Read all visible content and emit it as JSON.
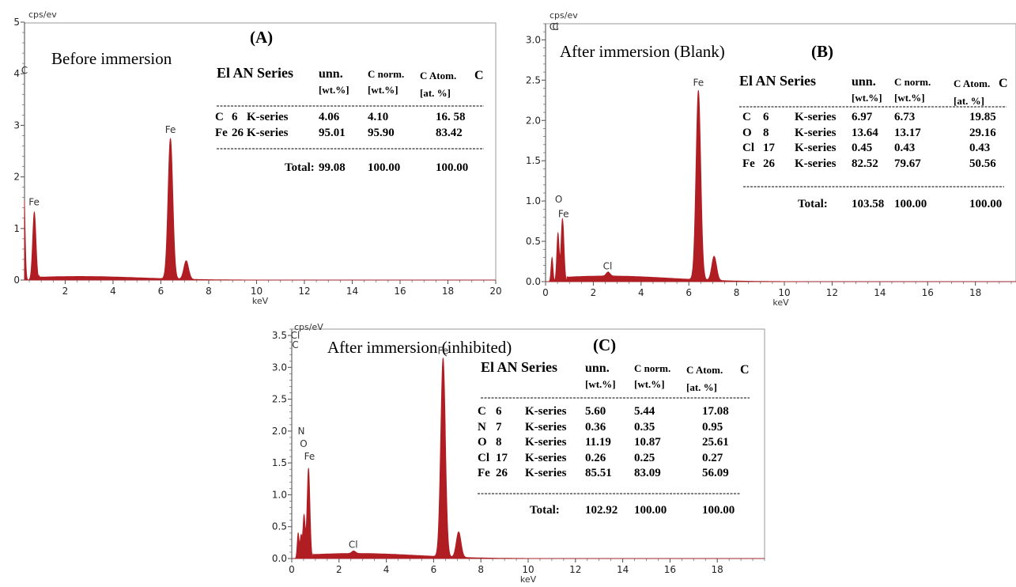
{
  "chart_data": [
    {
      "id": "A",
      "type": "area",
      "panel_label": "(A)",
      "title": "Before immersion",
      "y_unit": "cps/ev",
      "xlabel": "keV",
      "xlim": [
        0.3,
        20
      ],
      "ylim": [
        0,
        5
      ],
      "x_ticks": [
        2,
        4,
        6,
        8,
        10,
        12,
        14,
        16,
        18,
        "20"
      ],
      "y_ticks": [
        0,
        1,
        2,
        3,
        4,
        5
      ],
      "color": "#b01e24",
      "peaks": [
        {
          "x": 0.27,
          "y": 1.85,
          "w": 0.05
        },
        {
          "x": 0.71,
          "y": 1.32,
          "w": 0.07
        },
        {
          "x": 6.4,
          "y": 2.72,
          "w": 0.1
        },
        {
          "x": 7.06,
          "y": 0.36,
          "w": 0.1
        }
      ],
      "background": {
        "amp": 0.07,
        "center": 2.6,
        "width": 2.6,
        "tail_end": 12
      },
      "peak_labels": [
        {
          "text": "C",
          "x": 0.3,
          "y": 4.0
        },
        {
          "text": "Fe",
          "x": 0.7,
          "y": 1.45
        },
        {
          "text": "Fe",
          "x": 6.4,
          "y": 2.85
        }
      ],
      "table": {
        "headers": {
          "el_an_series": "El AN Series",
          "unn": "unn.",
          "c_norm": "C norm.",
          "c_atom": "C Atom.",
          "c_trail": "C",
          "wt1": "[wt.%]",
          "wt2": "[wt.%]",
          "at": "[at. %]"
        },
        "rows": [
          {
            "el": "C",
            "an": "6",
            "series": "K-series",
            "unn": "4.06",
            "norm": "4.10",
            "atom": "16. 58"
          },
          {
            "el": "Fe",
            "an": "26",
            "series": "K-series",
            "unn": "95.01",
            "norm": "95.90",
            "atom": "83.42"
          }
        ],
        "total": {
          "label": "Total:",
          "unn": "99.08",
          "norm": "100.00",
          "atom": "100.00"
        }
      }
    },
    {
      "id": "B",
      "type": "area",
      "panel_label": "(B)",
      "title": "After immersion (Blank)",
      "y_unit": "cps/ev",
      "xlabel": "keV",
      "xlim": [
        0,
        19.7
      ],
      "ylim": [
        0,
        3.2
      ],
      "x_ticks": [
        0,
        2,
        4,
        6,
        8,
        10,
        12,
        14,
        16,
        18
      ],
      "y_ticks": [
        "0.0",
        "0.5",
        "1.0",
        "1.5",
        "2.0",
        "2.5",
        "3.0"
      ],
      "color": "#b01e24",
      "peaks": [
        {
          "x": 0.27,
          "y": 0.3,
          "w": 0.04
        },
        {
          "x": 0.52,
          "y": 0.6,
          "w": 0.05
        },
        {
          "x": 0.71,
          "y": 0.78,
          "w": 0.06
        },
        {
          "x": 2.62,
          "y": 0.05,
          "w": 0.08
        },
        {
          "x": 6.4,
          "y": 2.35,
          "w": 0.1
        },
        {
          "x": 7.06,
          "y": 0.3,
          "w": 0.1
        }
      ],
      "background": {
        "amp": 0.07,
        "center": 2.6,
        "width": 2.6,
        "tail_end": 12
      },
      "peak_labels": [
        {
          "text": "Cl",
          "x": 0.35,
          "y": 3.12
        },
        {
          "text": "C",
          "x": 0.42,
          "y": 3.12
        },
        {
          "text": "O",
          "x": 0.55,
          "y": 0.98
        },
        {
          "text": "Fe",
          "x": 0.75,
          "y": 0.8
        },
        {
          "text": "Cl",
          "x": 2.6,
          "y": 0.15
        },
        {
          "text": "Fe",
          "x": 6.4,
          "y": 2.43
        }
      ],
      "table": {
        "headers": {
          "el_an_series": "El AN Series",
          "unn": "unn.",
          "c_norm": "C norm.",
          "c_atom": "C Atom.",
          "c_trail": "C",
          "wt1": "[wt.%]",
          "wt2": "[wt.%]",
          "at": "[at. %]"
        },
        "rows": [
          {
            "el": "C",
            "an": "6",
            "series": "K-series",
            "unn": "6.97",
            "norm": "6.73",
            "atom": "19.85"
          },
          {
            "el": "O",
            "an": "8",
            "series": "K-series",
            "unn": "13.64",
            "norm": "13.17",
            "atom": "29.16"
          },
          {
            "el": "Cl",
            "an": "17",
            "series": "K-series",
            "unn": "0.45",
            "norm": "0.43",
            "atom": "0.43"
          },
          {
            "el": "Fe",
            "an": "26",
            "series": "K-series",
            "unn": "82.52",
            "norm": "79.67",
            "atom": "50.56"
          }
        ],
        "total": {
          "label": "Total:",
          "unn": "103.58",
          "norm": "100.00",
          "atom": "100.00"
        }
      }
    },
    {
      "id": "C",
      "type": "area",
      "panel_label": "(C)",
      "title": "After immersion (inhibited)",
      "y_unit": "cps/eV",
      "xlabel": "keV",
      "xlim": [
        0,
        20
      ],
      "ylim": [
        0,
        3.6
      ],
      "x_ticks": [
        0,
        2,
        4,
        6,
        8,
        10,
        12,
        14,
        16,
        18
      ],
      "y_ticks": [
        "0.0",
        "0.5",
        "1.0",
        "1.5",
        "2.0",
        "2.5",
        "3.0",
        "3.5"
      ],
      "color": "#b01e24",
      "peaks": [
        {
          "x": 0.27,
          "y": 0.4,
          "w": 0.04
        },
        {
          "x": 0.39,
          "y": 0.35,
          "w": 0.04
        },
        {
          "x": 0.52,
          "y": 0.68,
          "w": 0.05
        },
        {
          "x": 0.71,
          "y": 1.42,
          "w": 0.06
        },
        {
          "x": 2.62,
          "y": 0.04,
          "w": 0.08
        },
        {
          "x": 6.4,
          "y": 3.12,
          "w": 0.1
        },
        {
          "x": 7.06,
          "y": 0.4,
          "w": 0.1
        }
      ],
      "background": {
        "amp": 0.08,
        "center": 2.7,
        "width": 2.6,
        "tail_end": 12
      },
      "peak_labels": [
        {
          "text": "Cl",
          "x": 0.15,
          "y": 3.45
        },
        {
          "text": "C",
          "x": 0.15,
          "y": 3.3
        },
        {
          "text": "N",
          "x": 0.4,
          "y": 1.95
        },
        {
          "text": "O",
          "x": 0.5,
          "y": 1.75
        },
        {
          "text": "Fe",
          "x": 0.75,
          "y": 1.55
        },
        {
          "text": "Cl",
          "x": 2.6,
          "y": 0.17
        },
        {
          "text": "Fe",
          "x": 6.4,
          "y": 3.21
        }
      ],
      "table": {
        "headers": {
          "el_an_series": "El AN Series",
          "unn": "unn.",
          "c_norm": "C norm.",
          "c_atom": "C Atom.",
          "c_trail": "C",
          "wt1": "[wt.%]",
          "wt2": "[wt.%]",
          "at": "[at. %]"
        },
        "rows": [
          {
            "el": "C",
            "an": "6",
            "series": "K-series",
            "unn": "5.60",
            "norm": "5.44",
            "atom": "17.08"
          },
          {
            "el": "N",
            "an": "7",
            "series": "K-series",
            "unn": "0.36",
            "norm": "0.35",
            "atom": "0.95"
          },
          {
            "el": "O",
            "an": "8",
            "series": "K-series",
            "unn": "11.19",
            "norm": "10.87",
            "atom": "25.61"
          },
          {
            "el": "Cl",
            "an": "17",
            "series": "K-series",
            "unn": "0.26",
            "norm": "0.25",
            "atom": "0.27"
          },
          {
            "el": "Fe",
            "an": "26",
            "series": "K-series",
            "unn": "85.51",
            "norm": "83.09",
            "atom": "56.09"
          }
        ],
        "total": {
          "label": "Total:",
          "unn": "102.92",
          "norm": "100.00",
          "atom": "100.00"
        }
      }
    }
  ]
}
